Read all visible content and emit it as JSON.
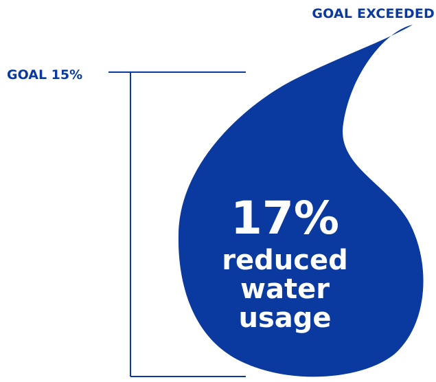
{
  "header": {
    "goal_exceeded_label": "GOAL EXCEEDED"
  },
  "goal": {
    "label": "GOAL 15%"
  },
  "drop": {
    "value": "17%",
    "caption_lines": [
      "reduced",
      "water",
      "usage"
    ]
  },
  "colors": {
    "accent": "#0a3aa0",
    "drop_fill": "#0a3aa0",
    "text_on_drop": "#ffffff",
    "background": "#ffffff"
  }
}
